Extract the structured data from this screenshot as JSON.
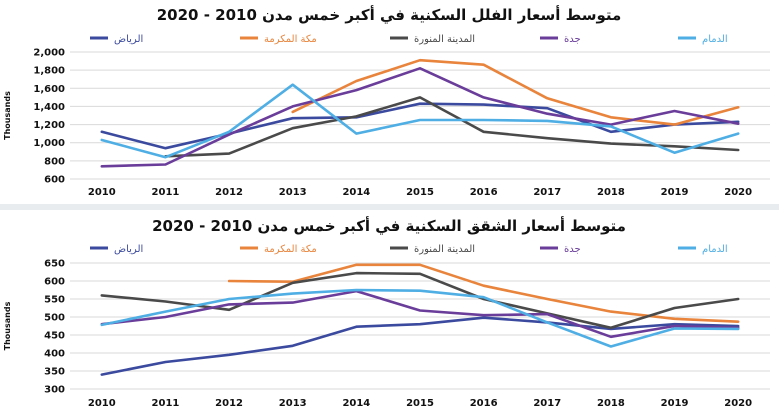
{
  "colors": {
    "riyadh": "#3b4a9e",
    "makkah": "#e8843c",
    "madinah": "#4a4a4a",
    "jeddah": "#6a3d9a",
    "dammam": "#4faee4",
    "grid": "#d9d9d9",
    "text": "#111111"
  },
  "chart_data": [
    {
      "type": "line",
      "title": "متوسط أسعار الفلل السكنية في أكبر خمس مدن 2010 - 2020",
      "ylabel": "Thousands",
      "xlabel": "",
      "ylim": [
        600,
        2000
      ],
      "yticks": [
        "600",
        "800",
        "1,000",
        "1,200",
        "1,400",
        "1,600",
        "1,800",
        "2,000"
      ],
      "ytick_values": [
        600,
        800,
        1000,
        1200,
        1400,
        1600,
        1800,
        2000
      ],
      "x": [
        "2010",
        "2011",
        "2012",
        "2013",
        "2014",
        "2015",
        "2016",
        "2017",
        "2018",
        "2019",
        "2020"
      ],
      "legend_position": "top",
      "series": [
        {
          "key": "riyadh",
          "name": "الرياض",
          "values": [
            1120,
            940,
            1100,
            1270,
            1280,
            1430,
            1420,
            1380,
            1120,
            1200,
            1230
          ]
        },
        {
          "key": "makkah",
          "name": "مكة المكرمة",
          "values": [
            null,
            null,
            null,
            1340,
            1680,
            1910,
            1860,
            1490,
            1280,
            1200,
            1390
          ]
        },
        {
          "key": "madinah",
          "name": "المدينة المنورة",
          "values": [
            null,
            850,
            880,
            1160,
            1290,
            1500,
            1120,
            1050,
            990,
            960,
            920
          ]
        },
        {
          "key": "jeddah",
          "name": "جدة",
          "values": [
            740,
            760,
            1090,
            1400,
            1580,
            1820,
            1500,
            1320,
            1200,
            1350,
            1210
          ]
        },
        {
          "key": "dammam",
          "name": "الدمام",
          "values": [
            1030,
            840,
            1120,
            1640,
            1100,
            1250,
            1250,
            1240,
            1180,
            890,
            1100
          ]
        }
      ]
    },
    {
      "type": "line",
      "title": "متوسط أسعار الشقق السكنية في أكبر خمس مدن 2010 - 2020",
      "ylabel": "Thousands",
      "xlabel": "",
      "ylim": [
        300,
        650
      ],
      "yticks": [
        "300",
        "350",
        "400",
        "450",
        "500",
        "550",
        "600",
        "650"
      ],
      "ytick_values": [
        300,
        350,
        400,
        450,
        500,
        550,
        600,
        650
      ],
      "x": [
        "2010",
        "2011",
        "2012",
        "2013",
        "2014",
        "2015",
        "2016",
        "2017",
        "2018",
        "2019",
        "2020"
      ],
      "legend_position": "top",
      "series": [
        {
          "key": "riyadh",
          "name": "الرياض",
          "values": [
            340,
            375,
            395,
            420,
            473,
            480,
            498,
            485,
            467,
            480,
            475
          ]
        },
        {
          "key": "makkah",
          "name": "مكة المكرمة",
          "values": [
            null,
            null,
            600,
            598,
            645,
            645,
            587,
            550,
            515,
            495,
            487
          ]
        },
        {
          "key": "madinah",
          "name": "المدينة المنورة",
          "values": [
            560,
            543,
            520,
            595,
            622,
            620,
            550,
            510,
            470,
            525,
            550
          ]
        },
        {
          "key": "jeddah",
          "name": "جدة",
          "values": [
            480,
            500,
            535,
            540,
            572,
            518,
            505,
            508,
            445,
            475,
            470
          ]
        },
        {
          "key": "dammam",
          "name": "الدمام",
          "values": [
            478,
            515,
            550,
            565,
            575,
            573,
            555,
            485,
            418,
            468,
            467
          ]
        }
      ]
    }
  ]
}
